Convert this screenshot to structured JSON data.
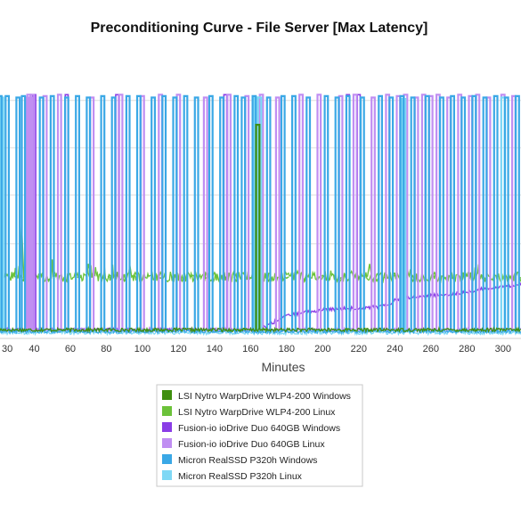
{
  "chart_data": {
    "type": "line",
    "title": "Preconditioning Curve - File Server [Max Latency]",
    "xlabel": "Minutes",
    "ylabel": "",
    "xlim": [
      21,
      310
    ],
    "ylim": [
      0,
      10
    ],
    "x_ticks": [
      40,
      60,
      80,
      100,
      120,
      140,
      160,
      180,
      200,
      220,
      240,
      260,
      280,
      300
    ],
    "x_tick_labels": [
      "40",
      "60",
      "80",
      "100",
      "120",
      "140",
      "160",
      "180",
      "200",
      "220",
      "240",
      "260",
      "280",
      "300"
    ],
    "partial_x_tick_label": "30",
    "y_grid": [
      3.3,
      5.0,
      6.65,
      8.3
    ],
    "grid": true,
    "legend_position": "bottom-center",
    "series": [
      {
        "name": "LSI Nytro WarpDrive WLP4-200 Windows",
        "color": "#3f8f0f",
        "baseline": 0.3,
        "spike_top": 7.45,
        "x": [
          164
        ],
        "values": [
          7.45
        ]
      },
      {
        "name": "LSI Nytro WarpDrive WLP4-200 Linux",
        "color": "#6cc23a",
        "baseline": 2.15,
        "spike_top": 2.6,
        "x": [
          21,
          30,
          33,
          35,
          40,
          48,
          52,
          65,
          70,
          78,
          82,
          90,
          96,
          110,
          122,
          128,
          135,
          140,
          152,
          160,
          170,
          180,
          190,
          200,
          210,
          226,
          230,
          235,
          240,
          250,
          262,
          272,
          280,
          290,
          300,
          310
        ],
        "values": [
          2.1,
          2.15,
          4.0,
          2.1,
          2.3,
          2.0,
          2.2,
          2.1,
          2.6,
          2.1,
          2.2,
          2.0,
          2.3,
          2.1,
          2.0,
          2.2,
          2.1,
          2.3,
          2.0,
          2.1,
          2.0,
          2.1,
          2.0,
          2.2,
          2.1,
          2.6,
          2.0,
          2.1,
          2.2,
          2.0,
          2.3,
          2.1,
          2.2,
          2.0,
          2.1,
          2.0
        ]
      },
      {
        "name": "Fusion-io ioDrive Duo 640GB Windows",
        "color": "#8a3de6",
        "baseline": 0.3,
        "spike_top": 8.5,
        "x": [
          21,
          100,
          160,
          166,
          180,
          200,
          230,
          236,
          240,
          250,
          260,
          270,
          280,
          290,
          300,
          310
        ],
        "values": [
          0.3,
          0.3,
          0.3,
          0.35,
          0.8,
          1.0,
          1.1,
          1.15,
          1.35,
          1.45,
          1.5,
          1.55,
          1.6,
          1.75,
          1.8,
          1.9
        ]
      },
      {
        "name": "Fusion-io ioDrive Duo 640GB Linux",
        "color": "#c08ef2",
        "baseline": 0.3,
        "spike_top": 8.5,
        "x": [
          36,
          37,
          38,
          39,
          46,
          54,
          72,
          88,
          100,
          110,
          120,
          135,
          148,
          158,
          166,
          175,
          188,
          198,
          210,
          218,
          228,
          236,
          242,
          246,
          252,
          256,
          260,
          264,
          270,
          276,
          282,
          286,
          292,
          300,
          306
        ],
        "values": [
          8.4,
          8.5,
          8.4,
          8.5,
          8.45,
          8.5,
          8.4,
          8.5,
          8.45,
          8.5,
          8.5,
          8.4,
          8.5,
          8.45,
          8.5,
          8.4,
          8.5,
          8.5,
          8.45,
          8.5,
          8.4,
          8.5,
          8.45,
          8.5,
          8.4,
          8.5,
          8.45,
          8.5,
          8.4,
          8.5,
          8.45,
          8.5,
          8.4,
          8.5,
          8.45
        ]
      },
      {
        "name": "Micron RealSSD P320h Windows",
        "color": "#3aa8e6",
        "baseline": 0.25,
        "spike_top": 8.45,
        "x": [
          21,
          25,
          31,
          34,
          44,
          50,
          58,
          64,
          70,
          78,
          84,
          92,
          98,
          106,
          112,
          118,
          124,
          130,
          138,
          144,
          152,
          156,
          162,
          170,
          178,
          184,
          192,
          202,
          208,
          214,
          222,
          232,
          238,
          244,
          250,
          258,
          266,
          272,
          278,
          284,
          290,
          296,
          302,
          308
        ],
        "values": [
          8.45,
          8.45,
          8.4,
          8.45,
          8.4,
          8.45,
          8.4,
          8.45,
          8.4,
          8.45,
          8.4,
          8.45,
          8.45,
          8.4,
          8.45,
          8.4,
          8.45,
          8.4,
          8.45,
          8.4,
          8.45,
          8.4,
          8.45,
          8.4,
          8.45,
          8.45,
          8.4,
          8.45,
          8.4,
          8.45,
          8.4,
          8.45,
          8.4,
          8.45,
          8.4,
          8.45,
          8.4,
          8.45,
          8.4,
          8.45,
          8.4,
          8.45,
          8.4,
          8.45
        ]
      },
      {
        "name": "Micron RealSSD P320h Linux",
        "color": "#7fd8f5",
        "baseline": 0.2,
        "spike_top": 8.4,
        "x": [
          21,
          22,
          163,
          165,
          245,
          300
        ],
        "values": [
          8.4,
          8.4,
          8.4,
          8.4,
          8.35,
          8.4
        ]
      }
    ]
  }
}
